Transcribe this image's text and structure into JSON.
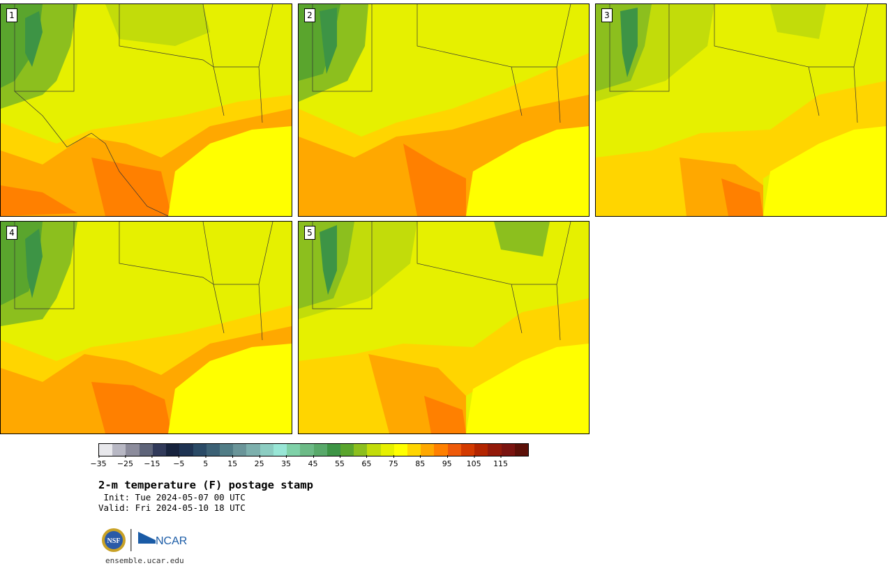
{
  "panels": [
    {
      "label": "1"
    },
    {
      "label": "2"
    },
    {
      "label": "3"
    },
    {
      "label": "4"
    },
    {
      "label": "5"
    }
  ],
  "colorbar": {
    "colors": [
      "#e8e8ec",
      "#b8b8c4",
      "#8c8c9c",
      "#5e6479",
      "#313a5a",
      "#17233d",
      "#1e3352",
      "#2a4a66",
      "#3c6175",
      "#517d86",
      "#6a9599",
      "#7db0ad",
      "#8ccdc2",
      "#98e6d6",
      "#7fd1a8",
      "#6cba86",
      "#58a96a",
      "#3d9445",
      "#5aa52d",
      "#8cbf1e",
      "#c2dc0a",
      "#e6f000",
      "#ffff00",
      "#ffd500",
      "#ffa800",
      "#ff8000",
      "#ee5a0a",
      "#d33a00",
      "#b32500",
      "#931a0a",
      "#7a1410",
      "#5c1008"
    ],
    "ticks": [
      "−35",
      "−25",
      "−15",
      "−5",
      "5",
      "15",
      "25",
      "35",
      "45",
      "55",
      "65",
      "75",
      "85",
      "95",
      "105",
      "115"
    ]
  },
  "title": "2-m temperature (F) postage stamp",
  "init": " Init: Tue 2024-05-07 00 UTC",
  "valid": "Valid: Fri 2024-05-10 18 UTC",
  "logo": {
    "nsf": "NSF",
    "ncar": "NCAR"
  },
  "url": "ensemble.ucar.edu"
}
